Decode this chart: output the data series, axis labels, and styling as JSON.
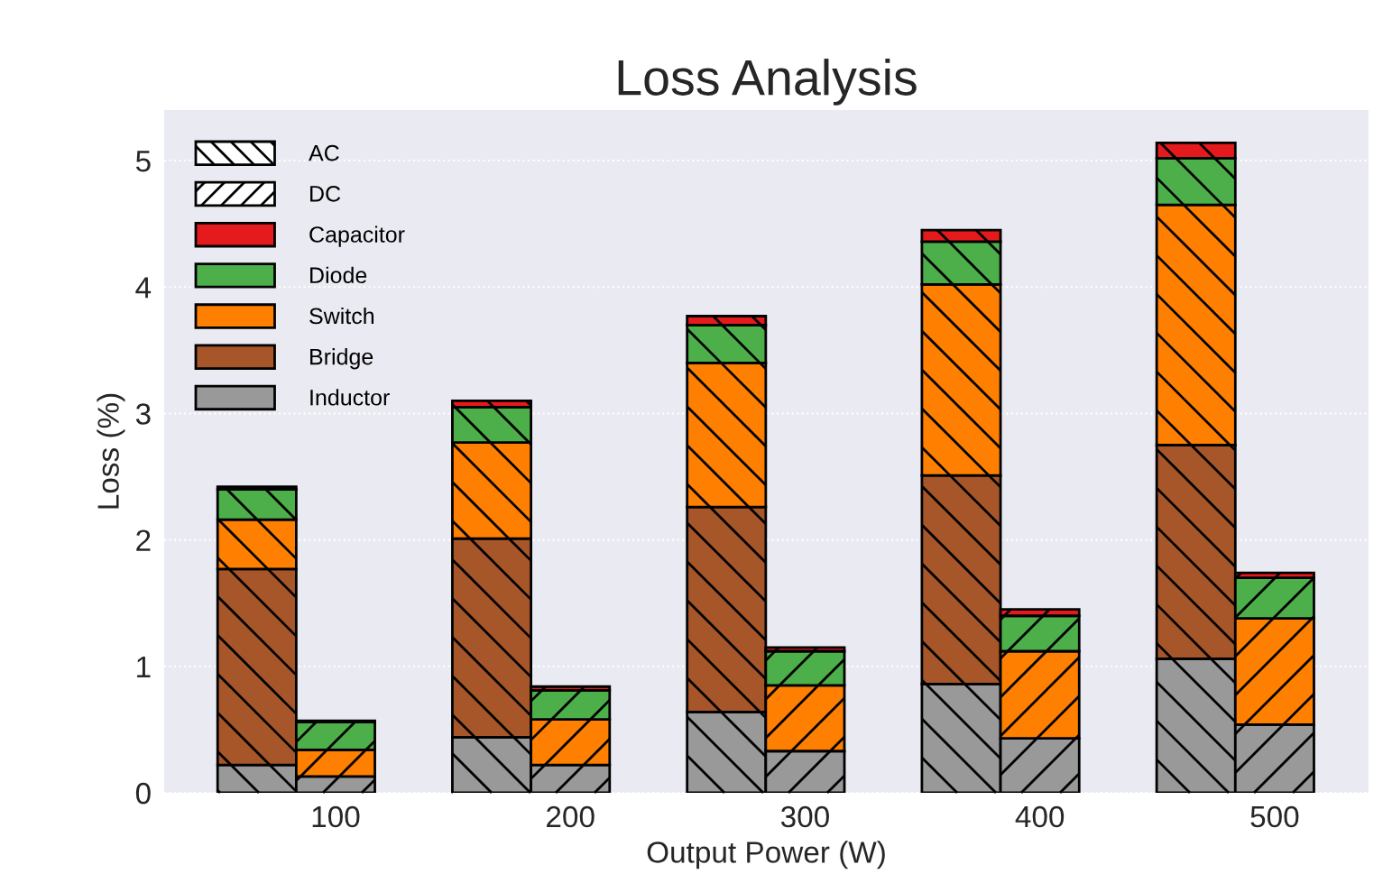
{
  "chart_data": {
    "type": "bar",
    "stacked": true,
    "title": "Loss Analysis",
    "xlabel": "Output Power (W)",
    "ylabel": "Loss (%)",
    "x": [
      66.5,
      100,
      166.5,
      200,
      266.5,
      300,
      366.5,
      400,
      466.5,
      500
    ],
    "xlim": [
      27,
      540
    ],
    "xticks": [
      100,
      200,
      300,
      400,
      500
    ],
    "ylim": [
      0,
      5.4
    ],
    "yticks": [
      0,
      1,
      2,
      3,
      4,
      5
    ],
    "grid": "y",
    "legend": "top left",
    "series": [
      {
        "name": "Inductor",
        "color": "#999999",
        "values": [
          0.22,
          0.13,
          0.44,
          0.22,
          0.64,
          0.33,
          0.86,
          0.43,
          1.06,
          0.54
        ]
      },
      {
        "name": "Bridge",
        "color": "#a65628",
        "values": [
          1.55,
          null,
          1.57,
          null,
          1.62,
          null,
          1.65,
          null,
          1.69,
          null
        ]
      },
      {
        "name": "Switch",
        "color": "#ff7f00",
        "values": [
          0.39,
          0.21,
          0.76,
          0.36,
          1.14,
          0.52,
          1.51,
          0.69,
          1.9,
          0.84
        ]
      },
      {
        "name": "Diode",
        "color": "#4daf4a",
        "values": [
          0.24,
          0.22,
          0.28,
          0.23,
          0.3,
          0.27,
          0.34,
          0.28,
          0.37,
          0.32
        ]
      },
      {
        "name": "Capacitor",
        "color": "#e41a1c",
        "values": [
          0.02,
          0.01,
          0.05,
          0.03,
          0.07,
          0.03,
          0.09,
          0.05,
          0.12,
          0.04
        ]
      },
      {
        "name": "DC",
        "color": "#ffffff",
        "values": [
          null,
          null,
          null,
          null,
          null,
          null,
          null,
          null,
          null,
          null
        ]
      },
      {
        "name": "AC",
        "color": "#ffffff",
        "values": [
          null,
          null,
          null,
          null,
          null,
          null,
          null,
          null,
          null,
          null
        ]
      }
    ]
  }
}
